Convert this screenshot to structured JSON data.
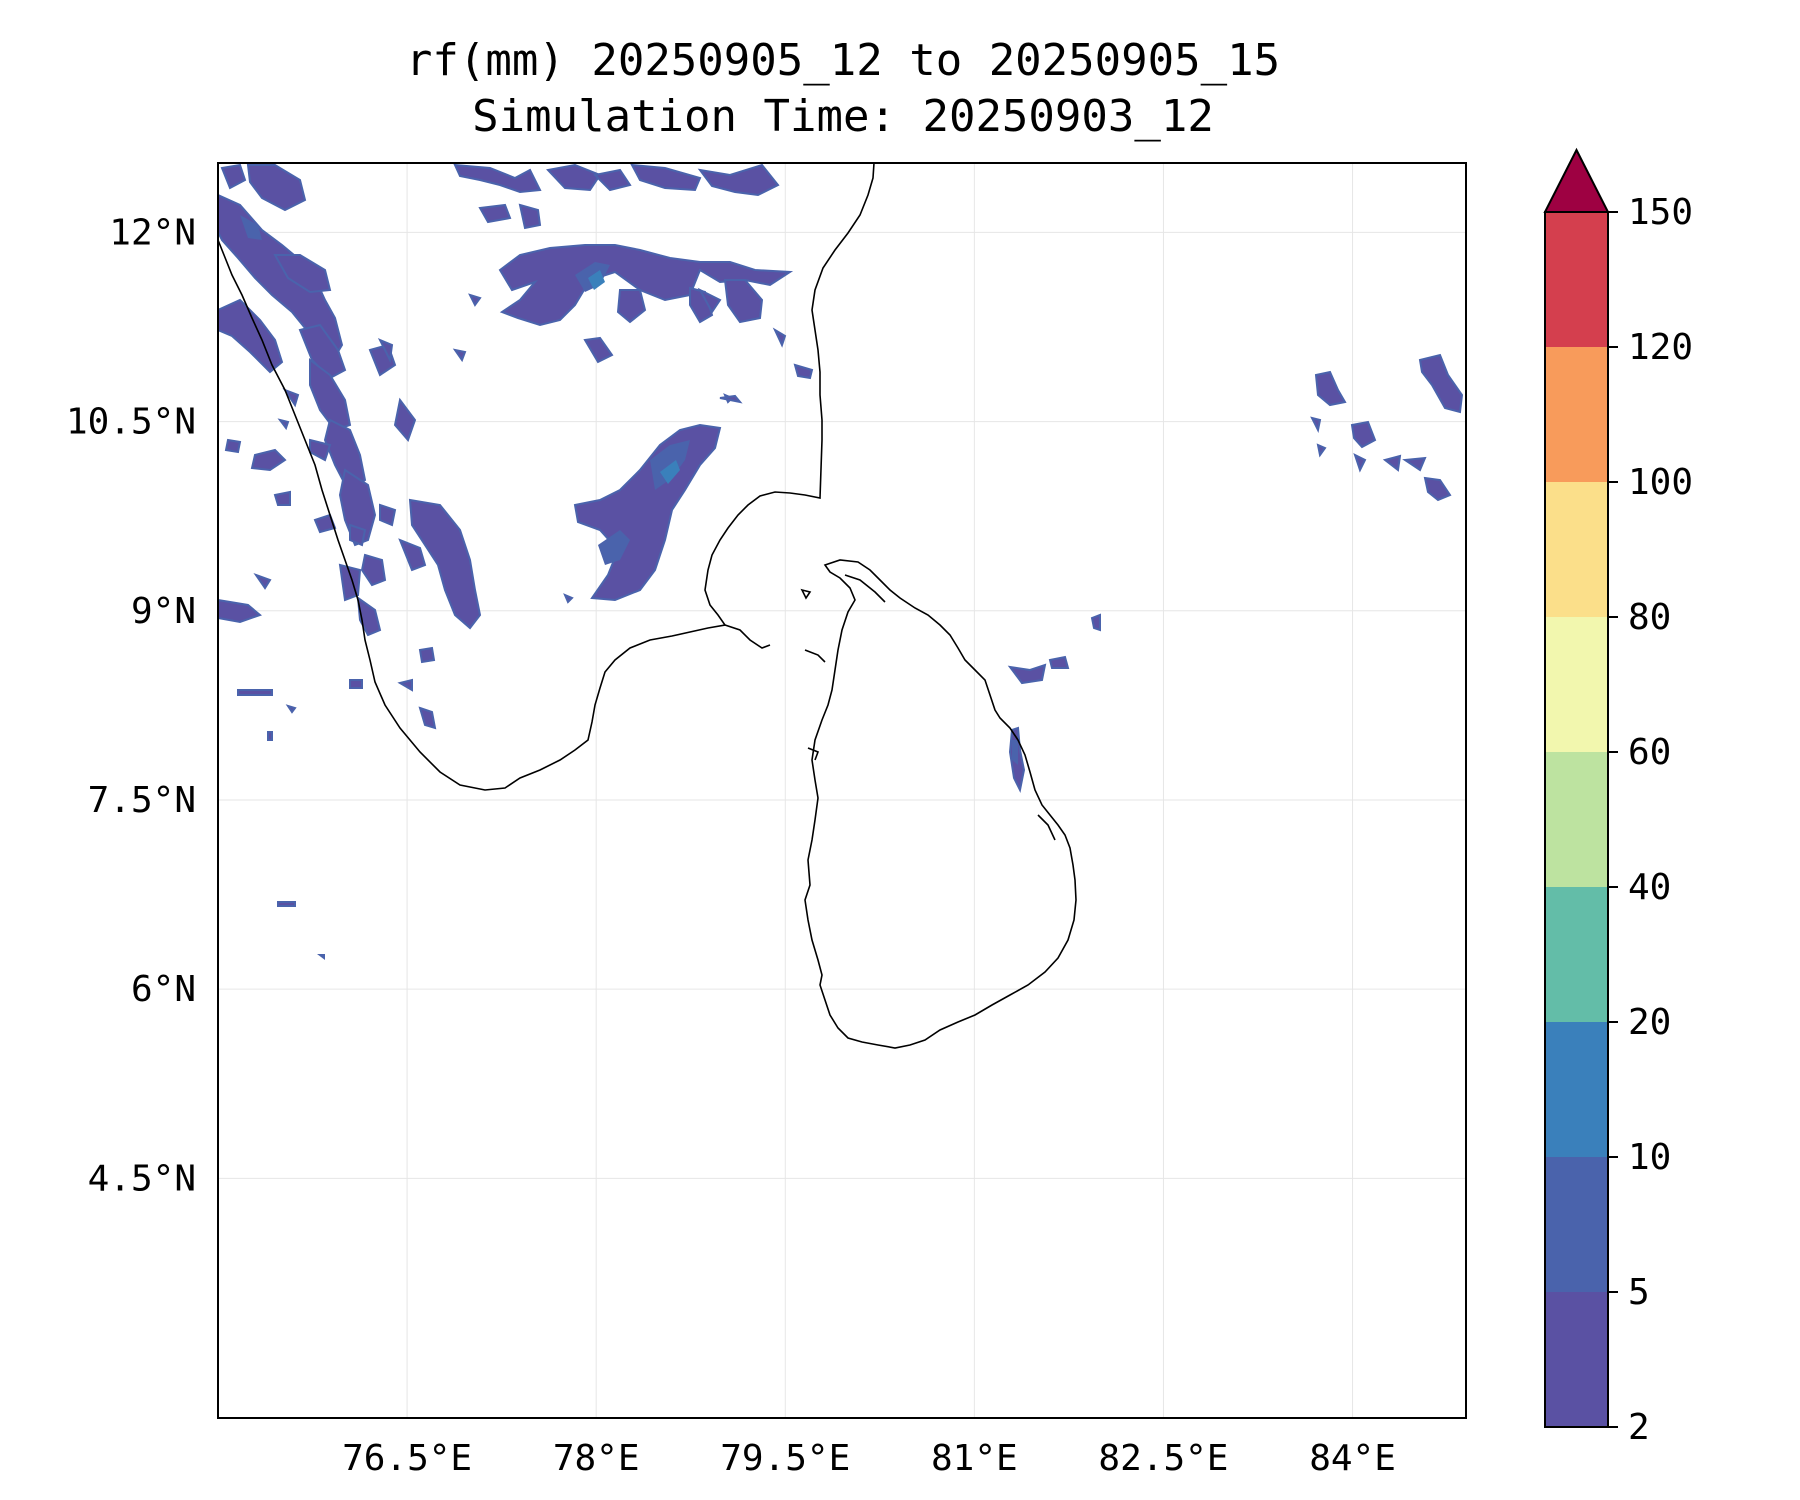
{
  "title": {
    "line1": "rf(mm) 20250905_12 to 20250905_15",
    "line2": "Simulation Time: 20250903_12"
  },
  "map": {
    "lon_range": [
      75.0,
      84.9
    ],
    "lat_range": [
      2.6,
      12.55
    ],
    "lon_ticks": [
      {
        "value": 76.5,
        "label": "76.5°E"
      },
      {
        "value": 78.0,
        "label": "78°E"
      },
      {
        "value": 79.5,
        "label": "79.5°E"
      },
      {
        "value": 81.0,
        "label": "81°E"
      },
      {
        "value": 82.5,
        "label": "82.5°E"
      },
      {
        "value": 84.0,
        "label": "84°E"
      }
    ],
    "lat_ticks": [
      {
        "value": 12.0,
        "label": "12°N"
      },
      {
        "value": 10.5,
        "label": "10.5°N"
      },
      {
        "value": 9.0,
        "label": "9°N"
      },
      {
        "value": 7.5,
        "label": "7.5°N"
      },
      {
        "value": 6.0,
        "label": "6°N"
      },
      {
        "value": 4.5,
        "label": "4.5°N"
      }
    ],
    "gridlines": true,
    "coastline_color": "#000000"
  },
  "colorbar": {
    "levels": [
      {
        "label": "2",
        "color": "#5a51a3"
      },
      {
        "label": "5",
        "color": "#4a63ac"
      },
      {
        "label": "10",
        "color": "#3a80bb"
      },
      {
        "label": "20",
        "color": "#63bda8"
      },
      {
        "label": "40",
        "color": "#bde3a0"
      },
      {
        "label": "60",
        "color": "#f2f7ae"
      },
      {
        "label": "80",
        "color": "#fbdf8a"
      },
      {
        "label": "100",
        "color": "#f89b5b"
      },
      {
        "label": "120",
        "color": "#d43f4e"
      },
      {
        "label": "150",
        "color": null
      }
    ],
    "extend_color": "#9e0142"
  }
}
